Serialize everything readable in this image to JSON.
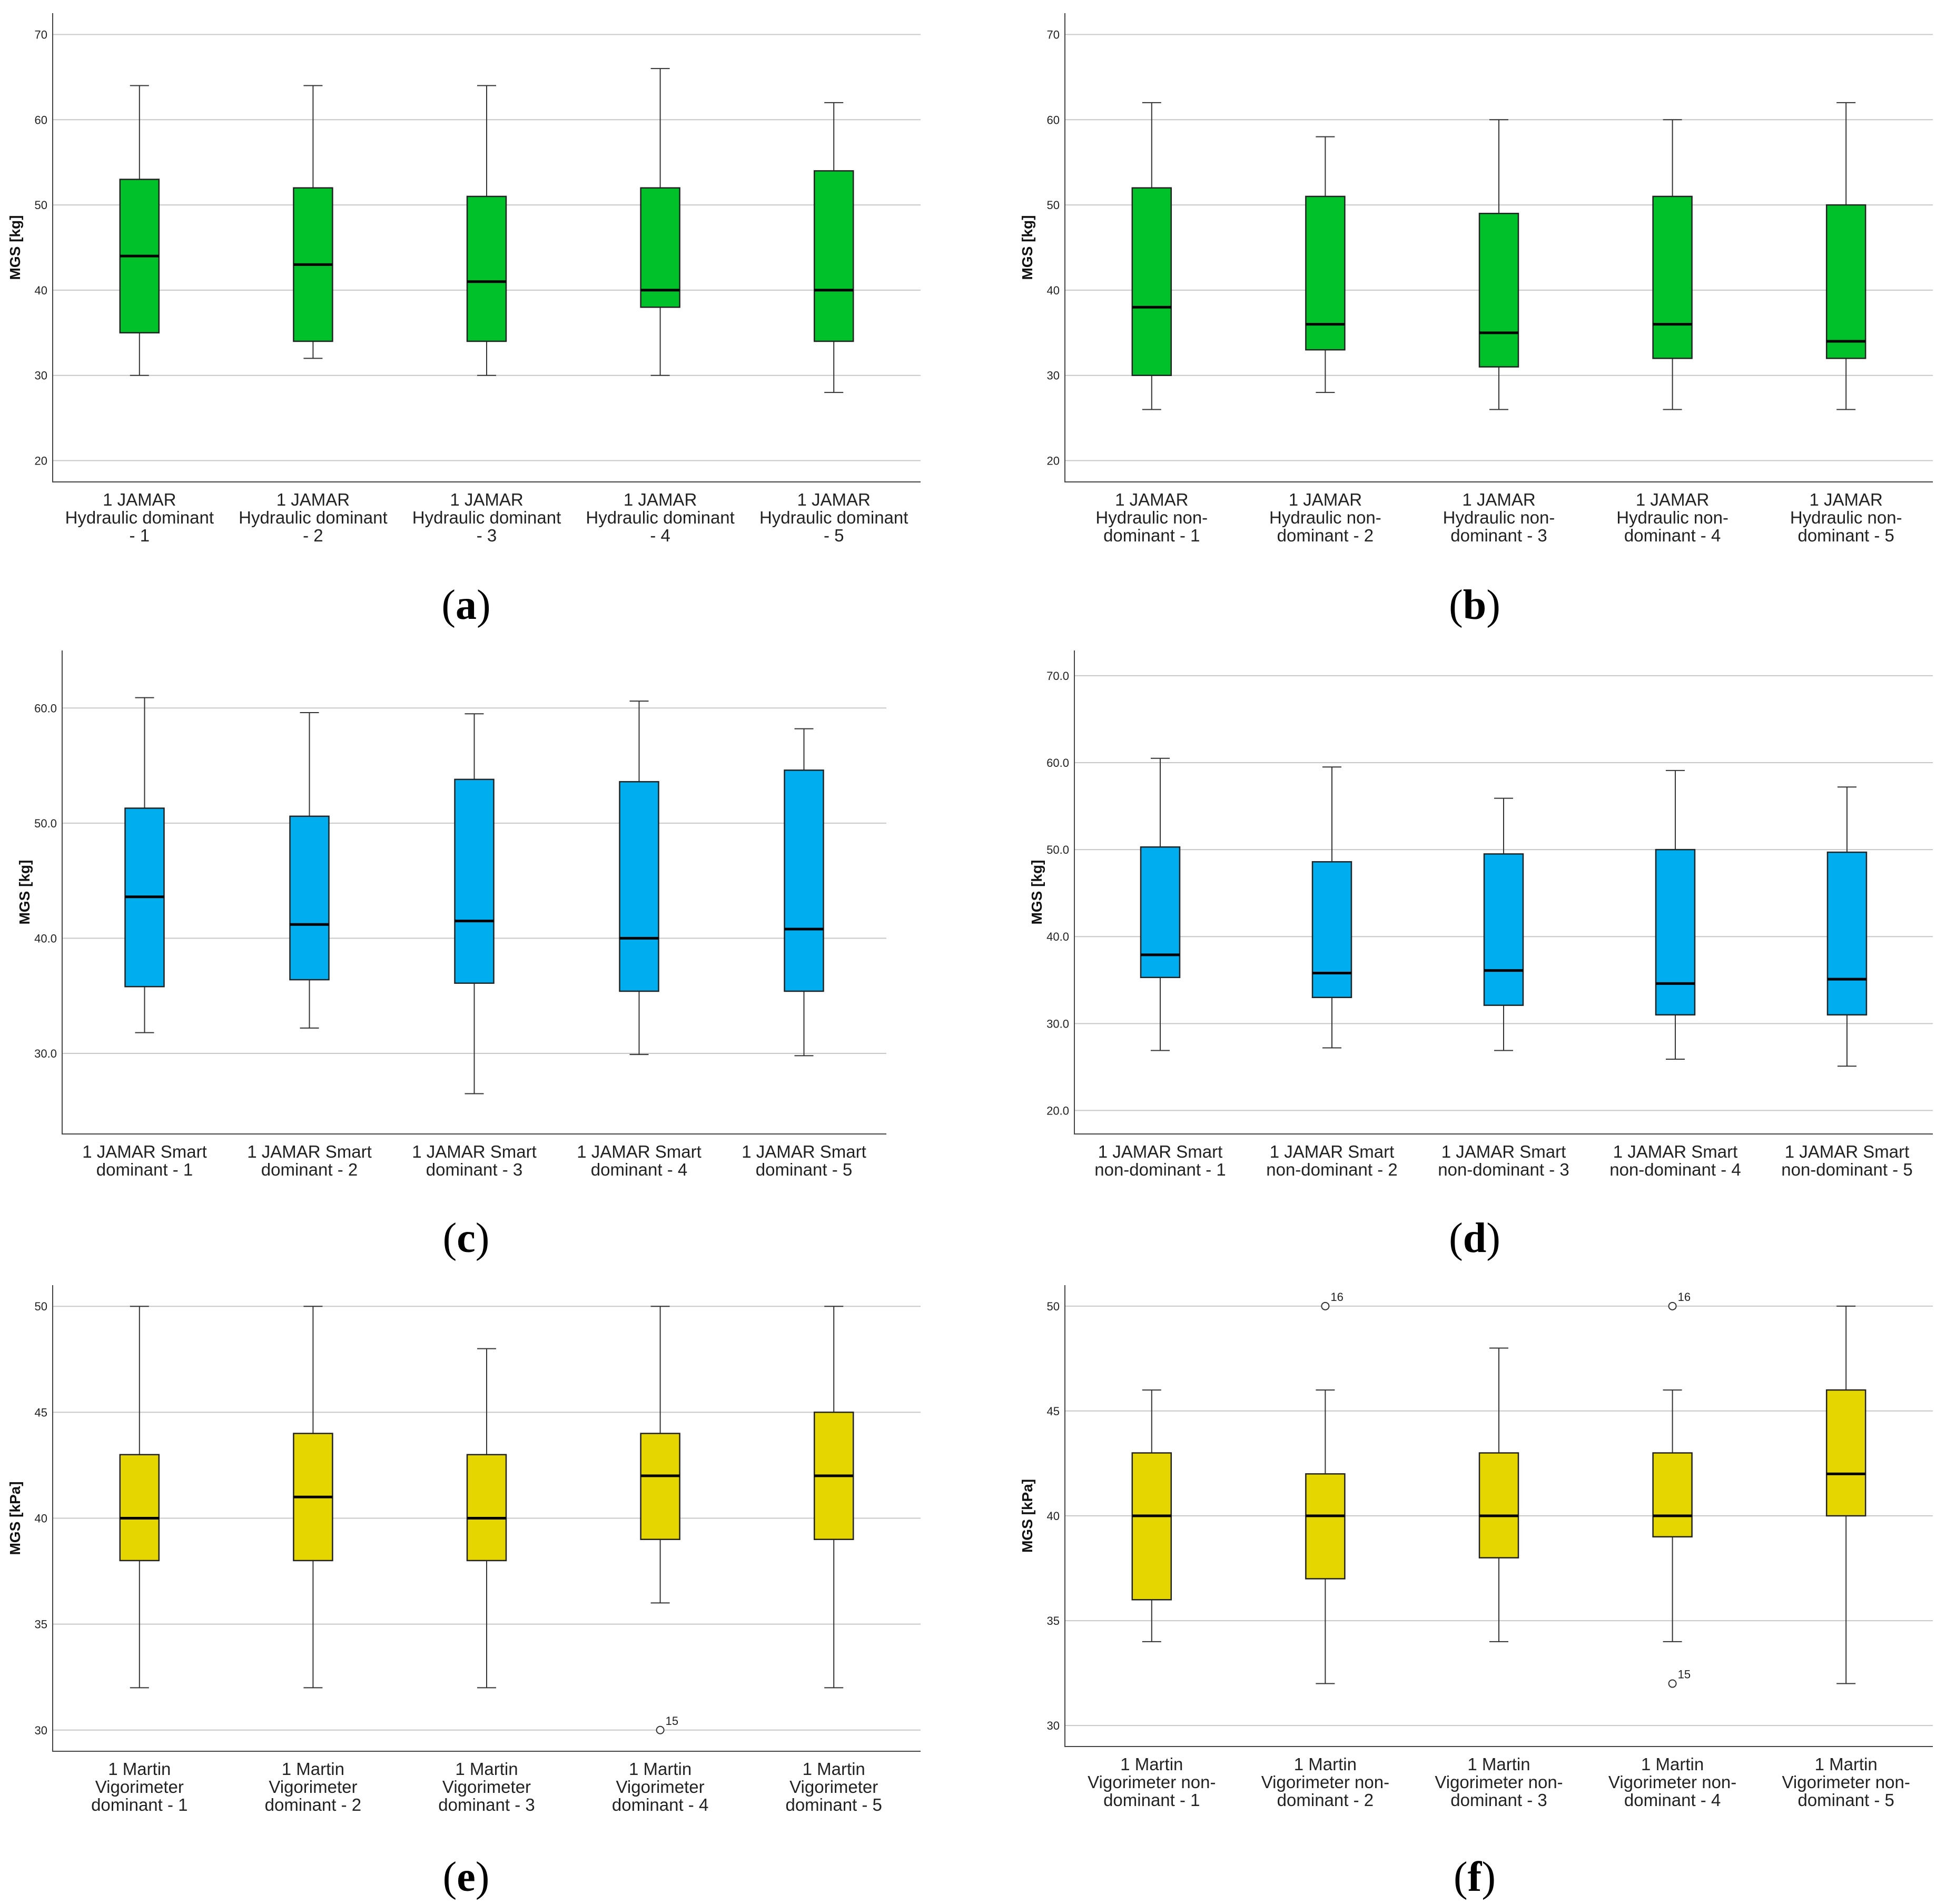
{
  "chart_data": [
    {
      "type": "box",
      "caption": "a",
      "ylabel": "MGS [kg]",
      "ylim": [
        17.5,
        72.5
      ],
      "yticks": [
        "20",
        "30",
        "40",
        "50",
        "60",
        "70"
      ],
      "ytick_values": [
        20,
        30,
        40,
        50,
        60,
        70
      ],
      "box_color": "#00c12a",
      "categories": [
        [
          "1 JAMAR",
          "Hydraulic dominant",
          "- 1"
        ],
        [
          "1 JAMAR",
          "Hydraulic dominant",
          "- 2"
        ],
        [
          "1 JAMAR",
          "Hydraulic dominant",
          "- 3"
        ],
        [
          "1 JAMAR",
          "Hydraulic dominant",
          "- 4"
        ],
        [
          "1 JAMAR",
          "Hydraulic dominant",
          "- 5"
        ]
      ],
      "boxes": [
        {
          "min": 30,
          "q1": 35,
          "median": 44,
          "q3": 53,
          "max": 64
        },
        {
          "min": 32,
          "q1": 34,
          "median": 43,
          "q3": 52,
          "max": 64
        },
        {
          "min": 30,
          "q1": 34,
          "median": 41,
          "q3": 51,
          "max": 64
        },
        {
          "min": 30,
          "q1": 38,
          "median": 40,
          "q3": 52,
          "max": 66
        },
        {
          "min": 28,
          "q1": 34,
          "median": 40,
          "q3": 54,
          "max": 62
        }
      ],
      "outliers": []
    },
    {
      "type": "box",
      "caption": "b",
      "ylabel": "MGS [kg]",
      "ylim": [
        17.5,
        72.5
      ],
      "yticks": [
        "20",
        "30",
        "40",
        "50",
        "60",
        "70"
      ],
      "ytick_values": [
        20,
        30,
        40,
        50,
        60,
        70
      ],
      "box_color": "#00c12a",
      "categories": [
        [
          "1 JAMAR",
          "Hydraulic non-",
          "dominant - 1"
        ],
        [
          "1 JAMAR",
          "Hydraulic non-",
          "dominant - 2"
        ],
        [
          "1 JAMAR",
          "Hydraulic non-",
          "dominant - 3"
        ],
        [
          "1 JAMAR",
          "Hydraulic non-",
          "dominant - 4"
        ],
        [
          "1 JAMAR",
          "Hydraulic non-",
          "dominant - 5"
        ]
      ],
      "boxes": [
        {
          "min": 26,
          "q1": 30,
          "median": 38,
          "q3": 52,
          "max": 62
        },
        {
          "min": 28,
          "q1": 33,
          "median": 36,
          "q3": 51,
          "max": 58
        },
        {
          "min": 26,
          "q1": 31,
          "median": 35,
          "q3": 49,
          "max": 60
        },
        {
          "min": 26,
          "q1": 32,
          "median": 36,
          "q3": 51,
          "max": 60
        },
        {
          "min": 26,
          "q1": 32,
          "median": 34,
          "q3": 50,
          "max": 62
        }
      ],
      "outliers": []
    },
    {
      "type": "box",
      "caption": "c",
      "ylabel": "MGS [kg]",
      "ylim": [
        23,
        65
      ],
      "yticks": [
        "30.0",
        "40.0",
        "50.0",
        "60.0"
      ],
      "ytick_values": [
        30,
        40,
        50,
        60
      ],
      "box_color": "#00aeef",
      "categories": [
        [
          "1 JAMAR Smart",
          "dominant - 1"
        ],
        [
          "1 JAMAR Smart",
          "dominant - 2"
        ],
        [
          "1 JAMAR Smart",
          "dominant - 3"
        ],
        [
          "1 JAMAR Smart",
          "dominant - 4"
        ],
        [
          "1 JAMAR Smart",
          "dominant - 5"
        ]
      ],
      "boxes": [
        {
          "min": 31.8,
          "q1": 35.8,
          "median": 43.6,
          "q3": 51.3,
          "max": 60.9
        },
        {
          "min": 32.2,
          "q1": 36.4,
          "median": 41.2,
          "q3": 50.6,
          "max": 59.6
        },
        {
          "min": 26.5,
          "q1": 36.1,
          "median": 41.5,
          "q3": 53.8,
          "max": 59.5
        },
        {
          "min": 29.9,
          "q1": 35.4,
          "median": 40.0,
          "q3": 53.6,
          "max": 60.6
        },
        {
          "min": 29.8,
          "q1": 35.4,
          "median": 40.8,
          "q3": 54.6,
          "max": 58.2
        }
      ],
      "outliers": []
    },
    {
      "type": "box",
      "caption": "d",
      "ylabel": "MGS [kg]",
      "ylim": [
        17.3,
        72.9
      ],
      "yticks": [
        "20.0",
        "30.0",
        "40.0",
        "50.0",
        "60.0",
        "70.0"
      ],
      "ytick_values": [
        20,
        30,
        40,
        50,
        60,
        70
      ],
      "box_color": "#00aeef",
      "categories": [
        [
          "1 JAMAR Smart",
          "non-dominant - 1"
        ],
        [
          "1 JAMAR Smart",
          "non-dominant - 2"
        ],
        [
          "1 JAMAR Smart",
          "non-dominant - 3"
        ],
        [
          "1 JAMAR Smart",
          "non-dominant - 4"
        ],
        [
          "1 JAMAR Smart",
          "non-dominant - 5"
        ]
      ],
      "boxes": [
        {
          "min": 26.9,
          "q1": 35.3,
          "median": 37.9,
          "q3": 50.3,
          "max": 60.5
        },
        {
          "min": 27.2,
          "q1": 33.0,
          "median": 35.8,
          "q3": 48.6,
          "max": 59.5
        },
        {
          "min": 26.9,
          "q1": 32.1,
          "median": 36.1,
          "q3": 49.5,
          "max": 55.9
        },
        {
          "min": 25.9,
          "q1": 31.0,
          "median": 34.6,
          "q3": 50.0,
          "max": 59.1
        },
        {
          "min": 25.1,
          "q1": 31.0,
          "median": 35.1,
          "q3": 49.7,
          "max": 57.2
        }
      ],
      "outliers": []
    },
    {
      "type": "box",
      "caption": "e",
      "ylabel": "MGS [kPa]",
      "ylim": [
        29,
        51
      ],
      "yticks": [
        "30",
        "35",
        "40",
        "45",
        "50"
      ],
      "ytick_values": [
        30,
        35,
        40,
        45,
        50
      ],
      "box_color": "#e5d600",
      "categories": [
        [
          "1 Martin",
          "Vigorimeter",
          "dominant - 1"
        ],
        [
          "1 Martin",
          "Vigorimeter",
          "dominant - 2"
        ],
        [
          "1 Martin",
          "Vigorimeter",
          "dominant - 3"
        ],
        [
          "1 Martin",
          "Vigorimeter",
          "dominant - 4"
        ],
        [
          "1 Martin",
          "Vigorimeter",
          "dominant - 5"
        ]
      ],
      "boxes": [
        {
          "min": 32,
          "q1": 38,
          "median": 40,
          "q3": 43,
          "max": 50
        },
        {
          "min": 32,
          "q1": 38,
          "median": 41,
          "q3": 44,
          "max": 50
        },
        {
          "min": 32,
          "q1": 38,
          "median": 40,
          "q3": 43,
          "max": 48
        },
        {
          "min": 36,
          "q1": 39,
          "median": 42,
          "q3": 44,
          "max": 50
        },
        {
          "min": 32,
          "q1": 39,
          "median": 42,
          "q3": 45,
          "max": 50
        }
      ],
      "outliers": [
        {
          "box": 3,
          "value": 30,
          "label": "15"
        }
      ]
    },
    {
      "type": "box",
      "caption": "f",
      "ylabel": "MGS [kPa]",
      "ylim": [
        29,
        51
      ],
      "yticks": [
        "30",
        "35",
        "40",
        "45",
        "50"
      ],
      "ytick_values": [
        30,
        35,
        40,
        45,
        50
      ],
      "box_color": "#e5d600",
      "categories": [
        [
          "1 Martin",
          "Vigorimeter non-",
          "dominant - 1"
        ],
        [
          "1 Martin",
          "Vigorimeter non-",
          "dominant - 2"
        ],
        [
          "1 Martin",
          "Vigorimeter non-",
          "dominant - 3"
        ],
        [
          "1 Martin",
          "Vigorimeter non-",
          "dominant - 4"
        ],
        [
          "1 Martin",
          "Vigorimeter non-",
          "dominant - 5"
        ]
      ],
      "boxes": [
        {
          "min": 34,
          "q1": 36,
          "median": 40,
          "q3": 43,
          "max": 46
        },
        {
          "min": 32,
          "q1": 37,
          "median": 40,
          "q3": 42,
          "max": 46
        },
        {
          "min": 34,
          "q1": 38,
          "median": 40,
          "q3": 43,
          "max": 48
        },
        {
          "min": 34,
          "q1": 39,
          "median": 40,
          "q3": 43,
          "max": 46
        },
        {
          "min": 32,
          "q1": 40,
          "median": 42,
          "q3": 46,
          "max": 50
        }
      ],
      "outliers": [
        {
          "box": 1,
          "value": 50,
          "label": "16"
        },
        {
          "box": 3,
          "value": 50,
          "label": "16"
        },
        {
          "box": 3,
          "value": 32,
          "label": "15"
        }
      ]
    }
  ]
}
